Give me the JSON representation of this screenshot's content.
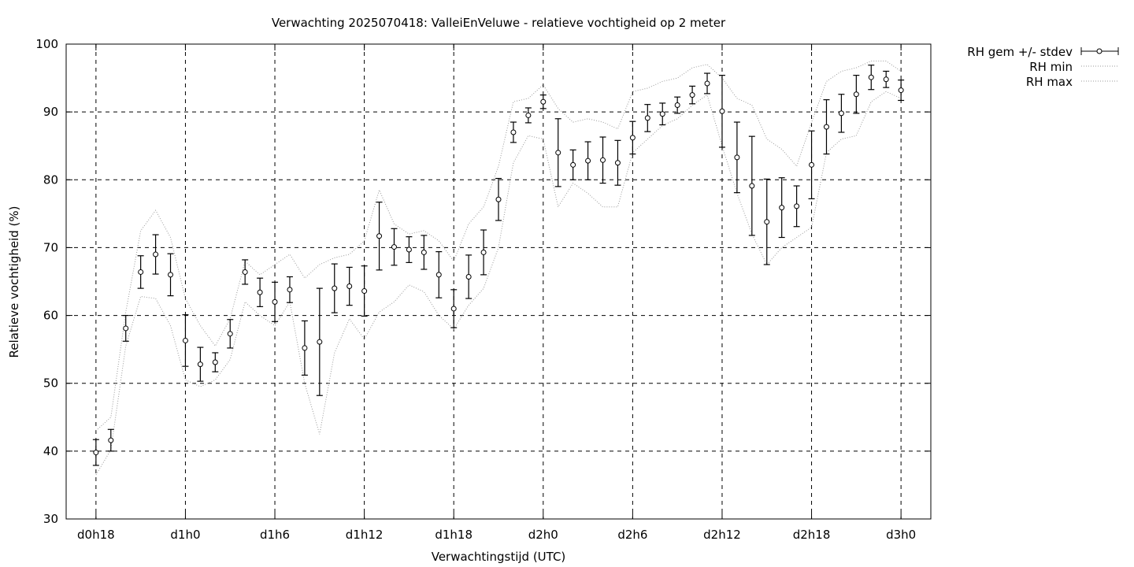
{
  "chart_data": {
    "type": "errorbar-line",
    "title": "Verwachting 2025070418: ValleiEnVeluwe - relatieve vochtigheid op 2 meter",
    "xlabel": "Verwachtingstijd (UTC)",
    "ylabel": "Relatieve vochtigheid (%)",
    "ylim": [
      30,
      100
    ],
    "yticks": [
      30,
      40,
      50,
      60,
      70,
      80,
      90,
      100
    ],
    "xlim_hours": [
      16,
      74
    ],
    "xticks": [
      {
        "label": "d0h18",
        "hour": 18
      },
      {
        "label": "d1h0",
        "hour": 24
      },
      {
        "label": "d1h6",
        "hour": 30
      },
      {
        "label": "d1h12",
        "hour": 36
      },
      {
        "label": "d1h18",
        "hour": 42
      },
      {
        "label": "d2h0",
        "hour": 48
      },
      {
        "label": "d2h6",
        "hour": 54
      },
      {
        "label": "d2h12",
        "hour": 60
      },
      {
        "label": "d2h18",
        "hour": 66
      },
      {
        "label": "d3h0",
        "hour": 72
      }
    ],
    "grid": true,
    "legend_position": "outside-top-right",
    "legend": [
      "RH gem +/- stdev",
      "RH min",
      "RH max"
    ],
    "x_hours": [
      18,
      19,
      20,
      21,
      22,
      23,
      24,
      25,
      26,
      27,
      28,
      29,
      30,
      31,
      32,
      33,
      34,
      35,
      36,
      37,
      38,
      39,
      40,
      41,
      42,
      43,
      44,
      45,
      46,
      47,
      48,
      49,
      50,
      51,
      52,
      53,
      54,
      55,
      56,
      57,
      58,
      59,
      60,
      61,
      62,
      63,
      64,
      65,
      66,
      67,
      68,
      69,
      70,
      71,
      72
    ],
    "series": [
      {
        "name": "RH gem +/- stdev",
        "mean": [
          39.8,
          41.6,
          58.1,
          66.4,
          69.0,
          66.0,
          56.3,
          52.8,
          53.1,
          57.3,
          66.4,
          63.4,
          62.0,
          63.8,
          55.2,
          56.1,
          64.0,
          64.3,
          63.6,
          71.7,
          70.1,
          69.7,
          69.3,
          66.0,
          61.0,
          65.7,
          69.3,
          77.1,
          87.0,
          89.5,
          91.5,
          84.0,
          82.2,
          82.8,
          82.9,
          82.5,
          86.2,
          89.1,
          89.7,
          91.0,
          92.5,
          94.2,
          90.1,
          83.3,
          79.1,
          73.8,
          75.9,
          76.1,
          82.2,
          87.8,
          89.8,
          92.6,
          95.1,
          94.8,
          93.2
        ],
        "stdev": [
          1.9,
          1.6,
          1.9,
          2.4,
          2.9,
          3.1,
          3.8,
          2.5,
          1.4,
          2.1,
          1.8,
          2.1,
          2.9,
          1.9,
          4.0,
          7.9,
          3.6,
          2.8,
          3.7,
          5.0,
          2.7,
          1.9,
          2.5,
          3.4,
          2.8,
          3.2,
          3.3,
          3.1,
          1.5,
          1.1,
          1.0,
          5.0,
          2.2,
          2.8,
          3.4,
          3.3,
          2.4,
          2.0,
          1.6,
          1.2,
          1.3,
          1.5,
          5.3,
          5.2,
          7.3,
          6.3,
          4.4,
          3.0,
          5.0,
          4.0,
          2.8,
          2.8,
          1.8,
          1.2,
          1.5
        ]
      },
      {
        "name": "RH min",
        "values": [
          36.5,
          40.2,
          55.5,
          62.8,
          62.5,
          58.5,
          50.5,
          49.5,
          50.5,
          53.5,
          62.0,
          60.0,
          58.5,
          62.0,
          50.0,
          42.5,
          54.5,
          59.5,
          56.5,
          60.5,
          62.0,
          64.5,
          63.5,
          60.0,
          58.0,
          61.5,
          64.0,
          70.0,
          82.5,
          86.5,
          86.0,
          76.0,
          79.5,
          78.0,
          76.0,
          76.0,
          84.0,
          86.0,
          88.0,
          89.0,
          91.0,
          92.5,
          85.0,
          78.0,
          72.0,
          67.5,
          70.0,
          71.5,
          73.0,
          84.0,
          86.0,
          86.5,
          91.5,
          93.0,
          92.0
        ]
      },
      {
        "name": "RH max",
        "values": [
          43.0,
          45.0,
          60.5,
          72.5,
          75.5,
          71.5,
          62.5,
          58.5,
          55.5,
          59.5,
          68.0,
          66.0,
          67.5,
          69.0,
          65.5,
          67.5,
          68.5,
          69.0,
          71.0,
          78.5,
          73.5,
          72.0,
          72.5,
          71.0,
          68.0,
          73.5,
          76.0,
          82.0,
          91.5,
          92.0,
          94.0,
          90.5,
          88.5,
          89.0,
          88.5,
          87.5,
          93.0,
          93.5,
          94.5,
          95.0,
          96.5,
          97.0,
          95.0,
          92.0,
          91.0,
          86.0,
          84.5,
          82.0,
          88.5,
          94.5,
          96.0,
          96.5,
          97.5,
          97.5,
          96.0
        ]
      }
    ]
  }
}
